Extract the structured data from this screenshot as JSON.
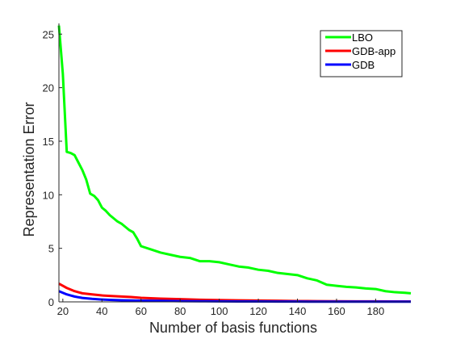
{
  "chart_data": {
    "type": "line",
    "title": "",
    "xlabel": "Number of basis functions",
    "ylabel": "Representation Error",
    "xlim": [
      18,
      198
    ],
    "ylim": [
      0,
      26
    ],
    "xticks": [
      20,
      40,
      60,
      80,
      100,
      120,
      140,
      160,
      180
    ],
    "yticks": [
      0,
      5,
      10,
      15,
      20,
      25
    ],
    "grid": false,
    "legend_position": "top-right",
    "series": [
      {
        "name": "LBO",
        "color": "#00ff00",
        "x": [
          18,
          20,
          22,
          24,
          26,
          28,
          30,
          32,
          34,
          36,
          38,
          40,
          42,
          44,
          46,
          48,
          50,
          52,
          54,
          56,
          58,
          60,
          65,
          70,
          75,
          80,
          85,
          90,
          95,
          100,
          105,
          110,
          115,
          120,
          125,
          130,
          135,
          140,
          145,
          150,
          155,
          160,
          165,
          170,
          175,
          180,
          185,
          190,
          195,
          198
        ],
        "y": [
          25.8,
          21.3,
          14.0,
          13.9,
          13.7,
          13.0,
          12.3,
          11.4,
          10.1,
          9.9,
          9.5,
          8.8,
          8.5,
          8.1,
          7.8,
          7.5,
          7.3,
          7.0,
          6.7,
          6.5,
          5.9,
          5.2,
          4.9,
          4.6,
          4.4,
          4.2,
          4.1,
          3.8,
          3.8,
          3.7,
          3.5,
          3.3,
          3.2,
          3.0,
          2.9,
          2.7,
          2.6,
          2.5,
          2.2,
          2.0,
          1.6,
          1.5,
          1.4,
          1.35,
          1.25,
          1.2,
          1.0,
          0.9,
          0.85,
          0.8
        ]
      },
      {
        "name": "GDB-app",
        "color": "#ff0000",
        "x": [
          18,
          20,
          22,
          24,
          26,
          28,
          30,
          35,
          40,
          45,
          50,
          55,
          60,
          70,
          80,
          90,
          100,
          110,
          120,
          130,
          140,
          150,
          160,
          170,
          180,
          190,
          198
        ],
        "y": [
          1.7,
          1.5,
          1.3,
          1.15,
          1.0,
          0.9,
          0.8,
          0.7,
          0.6,
          0.55,
          0.5,
          0.45,
          0.38,
          0.3,
          0.25,
          0.2,
          0.17,
          0.14,
          0.12,
          0.1,
          0.08,
          0.07,
          0.06,
          0.05,
          0.05,
          0.04,
          0.04
        ]
      },
      {
        "name": "GDB",
        "color": "#0000ff",
        "x": [
          18,
          20,
          22,
          24,
          26,
          28,
          30,
          35,
          40,
          45,
          50,
          55,
          60,
          70,
          80,
          90,
          100,
          110,
          120,
          130,
          140,
          150,
          160,
          170,
          180,
          190,
          198
        ],
        "y": [
          1.0,
          0.85,
          0.7,
          0.6,
          0.5,
          0.43,
          0.37,
          0.28,
          0.22,
          0.18,
          0.15,
          0.13,
          0.11,
          0.09,
          0.07,
          0.06,
          0.05,
          0.04,
          0.035,
          0.03,
          0.025,
          0.02,
          0.02,
          0.02,
          0.02,
          0.02,
          0.02
        ]
      }
    ]
  }
}
